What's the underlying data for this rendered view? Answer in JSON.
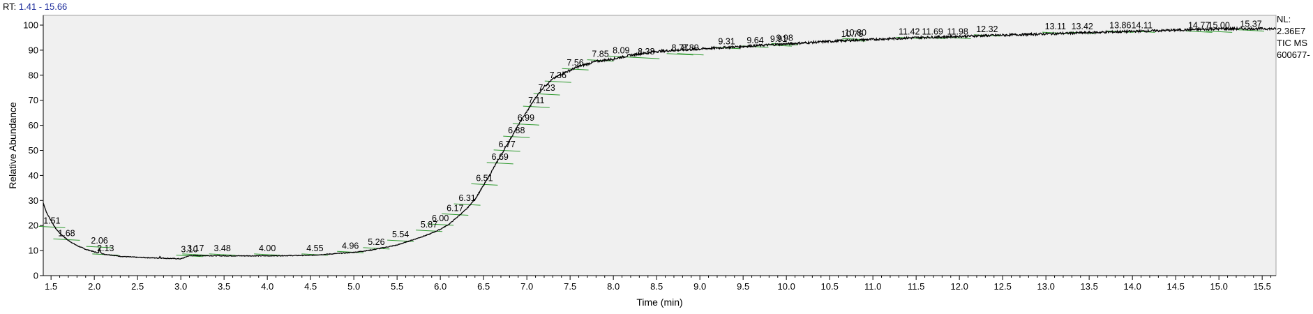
{
  "header": {
    "rt_label": "RT:",
    "rt_range": "1.41 - 15.66"
  },
  "side_info": {
    "nl_label": "NL:",
    "nl_value": "2.36E7",
    "scan_type": "TIC  MS",
    "file_id": "600677-"
  },
  "colors": {
    "trace": "#000000",
    "peak_baseline": "#2e9a2e",
    "plot_background": "#f0f0f0",
    "range_text": "#1a2a9a"
  },
  "chart_data": {
    "type": "line",
    "xlabel": "Time (min)",
    "ylabel": "Relative Abundance",
    "xlim": [
      1.41,
      15.66
    ],
    "ylim": [
      0,
      100
    ],
    "xticks": [
      1.5,
      2.0,
      2.5,
      3.0,
      3.5,
      4.0,
      4.5,
      5.0,
      5.5,
      6.0,
      6.5,
      7.0,
      7.5,
      8.0,
      8.5,
      9.0,
      9.5,
      10.0,
      10.5,
      11.0,
      11.5,
      12.0,
      12.5,
      13.0,
      13.5,
      14.0,
      14.5,
      15.0,
      15.5
    ],
    "xtick_labels": [
      "1.5",
      "2.0",
      "2.5",
      "3.0",
      "3.5",
      "4.0",
      "4.5",
      "5.0",
      "5.5",
      "6.0",
      "6.5",
      "7.0",
      "7.5",
      "8.0",
      "8.5",
      "9.0",
      "9.5",
      "10.0",
      "10.5",
      "11.0",
      "11.5",
      "12.0",
      "12.5",
      "13.0",
      "13.5",
      "14.0",
      "14.5",
      "15.0",
      "15.5"
    ],
    "yticks": [
      0,
      10,
      20,
      30,
      40,
      50,
      60,
      70,
      80,
      90,
      100
    ],
    "ytick_labels": [
      "0",
      "10",
      "20",
      "30",
      "40",
      "50",
      "60",
      "70",
      "80",
      "90",
      "100"
    ],
    "series": [
      {
        "x": [
          1.41,
          1.45,
          1.5,
          1.55,
          1.6,
          1.65,
          1.7,
          1.8,
          1.9,
          2.0,
          2.05,
          2.06,
          2.07,
          2.1,
          2.2,
          2.3,
          2.5,
          2.75,
          2.76,
          2.77,
          3.0,
          3.05,
          3.08,
          3.12,
          3.2,
          3.5,
          4.0,
          4.5,
          4.8,
          5.0,
          5.2,
          5.5,
          5.7,
          5.87,
          6.0,
          6.1,
          6.2,
          6.3,
          6.4,
          6.5,
          6.6,
          6.7,
          6.8,
          6.9,
          7.0,
          7.1,
          7.2,
          7.3,
          7.4,
          7.5,
          7.6,
          7.8,
          8.0,
          8.2,
          8.5,
          9.0,
          9.5,
          10.0,
          10.5,
          11.0,
          11.5,
          12.0,
          12.5,
          13.0,
          13.5,
          14.0,
          14.5,
          15.0,
          15.5,
          15.66
        ],
        "y": [
          29,
          25,
          22,
          19,
          17,
          15.5,
          14,
          12,
          10.5,
          9.5,
          9,
          11.5,
          9.5,
          8.6,
          8.2,
          7.7,
          7.3,
          7.0,
          7.8,
          7.0,
          6.7,
          7.3,
          7.8,
          8.0,
          8.0,
          7.9,
          7.9,
          8.1,
          8.8,
          9.3,
          10.2,
          12.2,
          14.5,
          16.5,
          18.5,
          20.5,
          23.5,
          26.5,
          30.5,
          36,
          42,
          48,
          54,
          60,
          65.5,
          71,
          75.5,
          78.5,
          80.5,
          82,
          83.5,
          85.5,
          86.5,
          88,
          89.5,
          90.5,
          91.5,
          92.5,
          93.5,
          94.3,
          95,
          95.5,
          96,
          96.5,
          97,
          97.5,
          98,
          98.5,
          98.6,
          98.5
        ]
      }
    ],
    "peak_labels": [
      {
        "rt": 1.51,
        "label": "1.51",
        "y": 20.5
      },
      {
        "rt": 1.68,
        "label": "1.68",
        "y": 15.5
      },
      {
        "rt": 2.06,
        "label": "2.06",
        "y": 12.5
      },
      {
        "rt": 2.13,
        "label": "2.13",
        "y": 9.5
      },
      {
        "rt": 3.1,
        "label": "3.10",
        "y": 9.0
      },
      {
        "rt": 3.17,
        "label": "3.17",
        "y": 9.5
      },
      {
        "rt": 3.48,
        "label": "3.48",
        "y": 9.5
      },
      {
        "rt": 4.0,
        "label": "4.00",
        "y": 9.5
      },
      {
        "rt": 4.55,
        "label": "4.55",
        "y": 9.5
      },
      {
        "rt": 4.96,
        "label": "4.96",
        "y": 10.5
      },
      {
        "rt": 5.26,
        "label": "5.26",
        "y": 12.0
      },
      {
        "rt": 5.54,
        "label": "5.54",
        "y": 15.0
      },
      {
        "rt": 5.87,
        "label": "5.87",
        "y": 19.0
      },
      {
        "rt": 6.0,
        "label": "6.00",
        "y": 21.5
      },
      {
        "rt": 6.17,
        "label": "6.17",
        "y": 25.5
      },
      {
        "rt": 6.31,
        "label": "6.31",
        "y": 29.5
      },
      {
        "rt": 6.51,
        "label": "6.51",
        "y": 37.5
      },
      {
        "rt": 6.69,
        "label": "6.69",
        "y": 46.0
      },
      {
        "rt": 6.77,
        "label": "6.77",
        "y": 51.0
      },
      {
        "rt": 6.88,
        "label": "6.88",
        "y": 56.5
      },
      {
        "rt": 6.99,
        "label": "6.99",
        "y": 61.5
      },
      {
        "rt": 7.11,
        "label": "7.11",
        "y": 68.5
      },
      {
        "rt": 7.23,
        "label": "7.23",
        "y": 73.5
      },
      {
        "rt": 7.36,
        "label": "7.36",
        "y": 78.5
      },
      {
        "rt": 7.56,
        "label": "7.56",
        "y": 83.5
      },
      {
        "rt": 7.85,
        "label": "7.85",
        "y": 87.0
      },
      {
        "rt": 8.09,
        "label": "8.09",
        "y": 88.5
      },
      {
        "rt": 8.38,
        "label": "8.38",
        "y": 88.0
      },
      {
        "rt": 8.77,
        "label": "8.77",
        "y": 89.5
      },
      {
        "rt": 8.89,
        "label": "8.89",
        "y": 89.5
      },
      {
        "rt": 9.31,
        "label": "9.31",
        "y": 92.0
      },
      {
        "rt": 9.64,
        "label": "9.64",
        "y": 92.5
      },
      {
        "rt": 9.91,
        "label": "9.91",
        "y": 93.0
      },
      {
        "rt": 9.98,
        "label": "9.98",
        "y": 93.5
      },
      {
        "rt": 10.76,
        "label": "10.76",
        "y": 95.0
      },
      {
        "rt": 10.8,
        "label": "10.80",
        "y": 95.5
      },
      {
        "rt": 11.42,
        "label": "11.42",
        "y": 96.0
      },
      {
        "rt": 11.69,
        "label": "11.69",
        "y": 96.0
      },
      {
        "rt": 11.98,
        "label": "11.98",
        "y": 96.0
      },
      {
        "rt": 12.32,
        "label": "12.32",
        "y": 97.0
      },
      {
        "rt": 13.11,
        "label": "13.11",
        "y": 98.0
      },
      {
        "rt": 13.42,
        "label": "13.42",
        "y": 98.0
      },
      {
        "rt": 13.86,
        "label": "13.86",
        "y": 98.5
      },
      {
        "rt": 14.11,
        "label": "14.11",
        "y": 98.5
      },
      {
        "rt": 14.77,
        "label": "14.77",
        "y": 98.5
      },
      {
        "rt": 15.0,
        "label": "15.00",
        "y": 98.5
      },
      {
        "rt": 15.37,
        "label": "15.37",
        "y": 99.0
      }
    ],
    "grid": false,
    "legend": "none"
  }
}
